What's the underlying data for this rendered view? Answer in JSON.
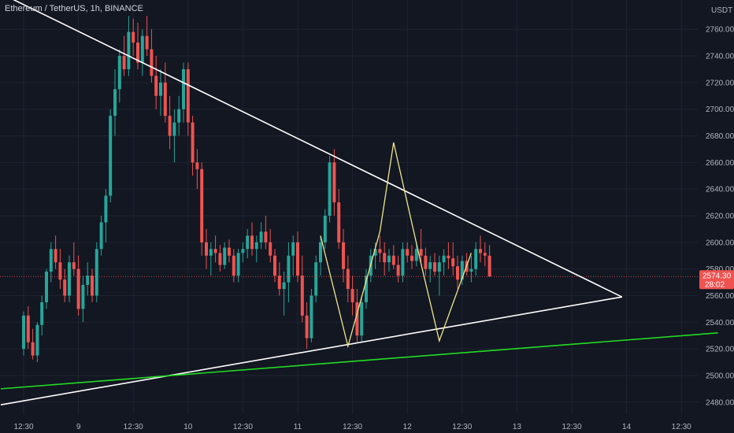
{
  "header": {
    "symbol_title": "Ethereum / TetherUS, 1h, BINANCE",
    "currency": "USDT"
  },
  "colors": {
    "background": "#131722",
    "up": "#26a69a",
    "down": "#ef5350",
    "grid": "#1f2330",
    "trendline": "#ffffff",
    "pattern": "#f0e68c",
    "support": "#22dd22",
    "last_price_bg": "#ef5350",
    "last_price_line": "#ef5350"
  },
  "chart_data": {
    "type": "candlestick",
    "y_ticks": [
      2480,
      2500,
      2520,
      2540,
      2560,
      2580,
      2600,
      2620,
      2640,
      2660,
      2680,
      2700,
      2720,
      2740,
      2760
    ],
    "ylim": [
      2471,
      2782
    ],
    "x_ticks": [
      {
        "label": "12:30",
        "t": 0
      },
      {
        "label": "9",
        "t": 12
      },
      {
        "label": "12:30",
        "t": 24
      },
      {
        "label": "10",
        "t": 36
      },
      {
        "label": "12:30",
        "t": 48
      },
      {
        "label": "11",
        "t": 60
      },
      {
        "label": "12:30",
        "t": 72
      },
      {
        "label": "12",
        "t": 84
      },
      {
        "label": "12:30",
        "t": 96
      },
      {
        "label": "13",
        "t": 108
      },
      {
        "label": "12:30",
        "t": 120
      },
      {
        "label": "14",
        "t": 132
      },
      {
        "label": "12:30",
        "t": 144
      }
    ],
    "last_price": {
      "value": 2574.3,
      "label": "2574.30",
      "countdown": "28:02"
    },
    "candles": [
      [
        2520,
        2548,
        2515,
        2545
      ],
      [
        2545,
        2552,
        2520,
        2525
      ],
      [
        2525,
        2535,
        2512,
        2515
      ],
      [
        2515,
        2540,
        2510,
        2538
      ],
      [
        2538,
        2560,
        2530,
        2555
      ],
      [
        2555,
        2580,
        2550,
        2578
      ],
      [
        2578,
        2600,
        2570,
        2595
      ],
      [
        2595,
        2605,
        2580,
        2585
      ],
      [
        2585,
        2595,
        2565,
        2572
      ],
      [
        2572,
        2580,
        2555,
        2560
      ],
      [
        2560,
        2590,
        2555,
        2585
      ],
      [
        2585,
        2600,
        2575,
        2580
      ],
      [
        2580,
        2590,
        2545,
        2550
      ],
      [
        2550,
        2575,
        2540,
        2568
      ],
      [
        2568,
        2585,
        2560,
        2575
      ],
      [
        2575,
        2580,
        2555,
        2560
      ],
      [
        2560,
        2600,
        2555,
        2595
      ],
      [
        2595,
        2620,
        2590,
        2615
      ],
      [
        2615,
        2640,
        2600,
        2635
      ],
      [
        2635,
        2700,
        2630,
        2695
      ],
      [
        2695,
        2730,
        2680,
        2715
      ],
      [
        2715,
        2745,
        2705,
        2740
      ],
      [
        2740,
        2755,
        2725,
        2730
      ],
      [
        2730,
        2770,
        2725,
        2758
      ],
      [
        2758,
        2768,
        2740,
        2750
      ],
      [
        2750,
        2765,
        2730,
        2735
      ],
      [
        2735,
        2760,
        2725,
        2755
      ],
      [
        2755,
        2770,
        2740,
        2745
      ],
      [
        2745,
        2760,
        2720,
        2725
      ],
      [
        2725,
        2740,
        2700,
        2710
      ],
      [
        2710,
        2730,
        2695,
        2720
      ],
      [
        2720,
        2735,
        2690,
        2695
      ],
      [
        2695,
        2710,
        2670,
        2680
      ],
      [
        2680,
        2700,
        2660,
        2690
      ],
      [
        2690,
        2710,
        2680,
        2700
      ],
      [
        2700,
        2735,
        2690,
        2730
      ],
      [
        2730,
        2735,
        2680,
        2690
      ],
      [
        2690,
        2695,
        2650,
        2660
      ],
      [
        2660,
        2670,
        2640,
        2655
      ],
      [
        2655,
        2660,
        2590,
        2600
      ],
      [
        2600,
        2610,
        2580,
        2590
      ],
      [
        2590,
        2600,
        2575,
        2595
      ],
      [
        2595,
        2605,
        2585,
        2592
      ],
      [
        2592,
        2598,
        2578,
        2583
      ],
      [
        2583,
        2600,
        2580,
        2596
      ],
      [
        2596,
        2602,
        2585,
        2590
      ],
      [
        2590,
        2595,
        2570,
        2575
      ],
      [
        2575,
        2595,
        2570,
        2592
      ],
      [
        2592,
        2600,
        2585,
        2595
      ],
      [
        2595,
        2610,
        2588,
        2605
      ],
      [
        2605,
        2615,
        2590,
        2595
      ],
      [
        2595,
        2605,
        2585,
        2600
      ],
      [
        2600,
        2615,
        2595,
        2608
      ],
      [
        2608,
        2620,
        2595,
        2600
      ],
      [
        2600,
        2610,
        2585,
        2590
      ],
      [
        2590,
        2595,
        2570,
        2575
      ],
      [
        2575,
        2585,
        2560,
        2565
      ],
      [
        2565,
        2578,
        2545,
        2570
      ],
      [
        2570,
        2600,
        2555,
        2590
      ],
      [
        2590,
        2605,
        2575,
        2600
      ],
      [
        2600,
        2608,
        2570,
        2575
      ],
      [
        2575,
        2590,
        2540,
        2545
      ],
      [
        2545,
        2555,
        2520,
        2528
      ],
      [
        2528,
        2565,
        2525,
        2560
      ],
      [
        2560,
        2590,
        2555,
        2585
      ],
      [
        2585,
        2605,
        2575,
        2600
      ],
      [
        2600,
        2625,
        2595,
        2620
      ],
      [
        2620,
        2665,
        2615,
        2660
      ],
      [
        2660,
        2670,
        2620,
        2630
      ],
      [
        2630,
        2640,
        2595,
        2600
      ],
      [
        2600,
        2610,
        2570,
        2580
      ],
      [
        2580,
        2590,
        2555,
        2565
      ],
      [
        2565,
        2575,
        2545,
        2555
      ],
      [
        2555,
        2565,
        2525,
        2530
      ],
      [
        2530,
        2560,
        2525,
        2555
      ],
      [
        2555,
        2580,
        2550,
        2575
      ],
      [
        2575,
        2595,
        2570,
        2590
      ],
      [
        2590,
        2600,
        2580,
        2595
      ],
      [
        2595,
        2605,
        2585,
        2592
      ],
      [
        2592,
        2600,
        2575,
        2585
      ],
      [
        2585,
        2595,
        2578,
        2590
      ],
      [
        2590,
        2598,
        2580,
        2583
      ],
      [
        2583,
        2590,
        2570,
        2575
      ],
      [
        2575,
        2600,
        2570,
        2595
      ],
      [
        2595,
        2600,
        2585,
        2590
      ],
      [
        2590,
        2598,
        2580,
        2586
      ],
      [
        2586,
        2600,
        2582,
        2595
      ],
      [
        2595,
        2610,
        2585,
        2590
      ],
      [
        2590,
        2596,
        2575,
        2580
      ],
      [
        2580,
        2590,
        2570,
        2585
      ],
      [
        2585,
        2592,
        2575,
        2578
      ],
      [
        2578,
        2590,
        2560,
        2585
      ],
      [
        2585,
        2595,
        2575,
        2590
      ],
      [
        2590,
        2600,
        2580,
        2588
      ],
      [
        2588,
        2600,
        2575,
        2582
      ],
      [
        2582,
        2590,
        2565,
        2572
      ],
      [
        2572,
        2590,
        2568,
        2586
      ],
      [
        2586,
        2592,
        2575,
        2578
      ],
      [
        2578,
        2590,
        2570,
        2580
      ],
      [
        2580,
        2600,
        2575,
        2595
      ],
      [
        2595,
        2605,
        2585,
        2592
      ],
      [
        2592,
        2600,
        2582,
        2590
      ],
      [
        2590,
        2598,
        2575,
        2574.3
      ]
    ],
    "trendlines": [
      {
        "name": "upper-trendline",
        "from": {
          "t": -14,
          "y": 2802
        },
        "to": {
          "t": 131,
          "y": 2559
        }
      },
      {
        "name": "lower-trendline",
        "from": {
          "t": -5,
          "y": 2478
        },
        "to": {
          "t": 131,
          "y": 2559
        }
      },
      {
        "name": "support-line",
        "from": {
          "t": -5,
          "y": 2490
        },
        "to": {
          "t": 152,
          "y": 2532
        }
      }
    ],
    "pattern_lines": [
      {
        "t": 65,
        "y": 2605
      },
      {
        "t": 71,
        "y": 2522
      },
      {
        "t": 78,
        "y": 2608
      },
      {
        "t": 81,
        "y": 2675
      },
      {
        "t": 87,
        "y": 2584
      },
      {
        "t": 91,
        "y": 2526
      },
      {
        "t": 98,
        "y": 2592
      }
    ],
    "pattern_tail": [
      {
        "t": 96,
        "y": 2590
      },
      {
        "t": 98,
        "y": 2593
      }
    ]
  }
}
